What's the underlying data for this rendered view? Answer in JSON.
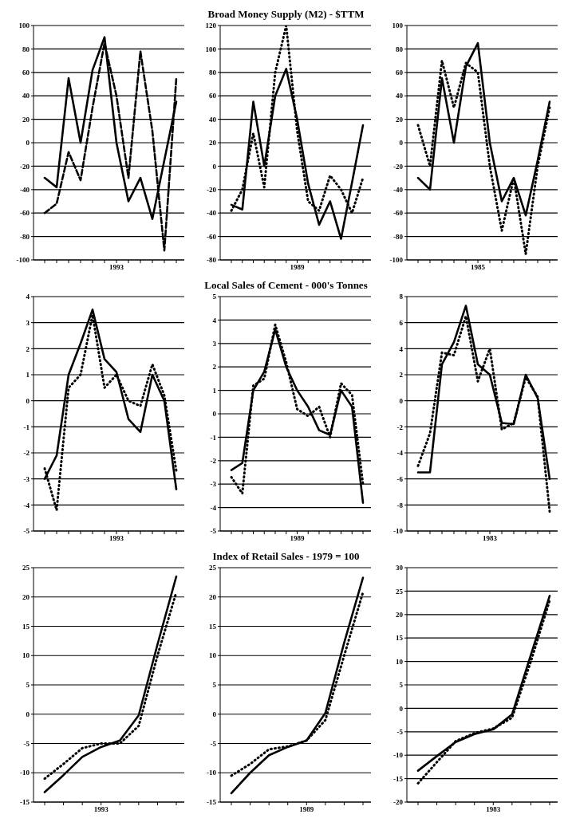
{
  "chart_data": [
    {
      "type": "line",
      "categories": [
        null,
        null,
        null,
        null,
        null,
        null,
        "1993",
        null,
        null,
        null,
        null,
        null
      ],
      "ylim": [
        -100,
        100
      ],
      "yticks": [
        -100,
        -80,
        -60,
        -40,
        -20,
        0,
        20,
        40,
        60,
        80,
        100
      ],
      "grid": "y",
      "series": [
        {
          "color": "#000000",
          "line_style": "solid",
          "values": [
            -30,
            -38,
            55,
            0,
            62,
            90,
            0,
            -50,
            -30,
            -65,
            -15,
            35
          ]
        },
        {
          "color": "#000000",
          "line_style": "dashed",
          "values": [
            -60,
            -52,
            -8,
            -32,
            30,
            85,
            40,
            -30,
            78,
            10,
            -92,
            55
          ]
        }
      ]
    },
    {
      "type": "line",
      "title": "Broad Money Supply (M2) - $TTM",
      "categories": [
        null,
        null,
        null,
        null,
        null,
        null,
        "1989",
        null,
        null,
        null,
        null,
        null,
        null
      ],
      "ylim": [
        -80,
        120
      ],
      "yticks": [
        -80,
        -60,
        -40,
        -20,
        0,
        20,
        40,
        60,
        80,
        100,
        120
      ],
      "grid": "y",
      "series": [
        {
          "color": "#000000",
          "line_style": "solid",
          "values": [
            -33,
            -37,
            55,
            0,
            60,
            83,
            40,
            -15,
            -50,
            -30,
            -62,
            -14,
            35
          ]
        },
        {
          "color": "#000000",
          "line_style": "dotted",
          "values": [
            -38,
            -20,
            28,
            -18,
            80,
            120,
            30,
            -30,
            -38,
            -8,
            -20,
            -40,
            -10
          ]
        }
      ]
    },
    {
      "type": "line",
      "categories": [
        null,
        null,
        null,
        null,
        null,
        "1985",
        null,
        null,
        null,
        null,
        null,
        null
      ],
      "ylim": [
        -100,
        100
      ],
      "yticks": [
        -100,
        -80,
        -60,
        -40,
        -20,
        0,
        20,
        40,
        60,
        80,
        100
      ],
      "grid": "y",
      "series": [
        {
          "color": "#000000",
          "line_style": "solid",
          "values": [
            -30,
            -40,
            55,
            0,
            65,
            85,
            0,
            -50,
            -30,
            -62,
            -15,
            35
          ]
        },
        {
          "color": "#000000",
          "line_style": "dotted",
          "values": [
            15,
            -20,
            70,
            30,
            68,
            60,
            -20,
            -75,
            -30,
            -95,
            -20,
            30
          ]
        }
      ]
    },
    {
      "type": "line",
      "categories": [
        null,
        null,
        null,
        null,
        null,
        null,
        "1993",
        null,
        null,
        null,
        null,
        null
      ],
      "ylim": [
        -5,
        4
      ],
      "yticks": [
        -5,
        -4,
        -3,
        -2,
        -1,
        0,
        1,
        2,
        3,
        4
      ],
      "grid": "y",
      "series": [
        {
          "color": "#000000",
          "line_style": "solid",
          "values": [
            -3,
            -2.1,
            1,
            2.2,
            3.5,
            1.6,
            1.1,
            -0.7,
            -1.2,
            1,
            0,
            -3.4
          ]
        },
        {
          "color": "#000000",
          "line_style": "dotted",
          "values": [
            -2.6,
            -4.2,
            0.5,
            1,
            3.3,
            0.5,
            1,
            0,
            -0.2,
            1.4,
            0.2,
            -2.7
          ]
        }
      ]
    },
    {
      "type": "line",
      "title": "Local Sales of Cement - 000's Tonnes",
      "categories": [
        null,
        null,
        null,
        null,
        null,
        null,
        "1989",
        null,
        null,
        null,
        null,
        null,
        null
      ],
      "ylim": [
        -5,
        5
      ],
      "yticks": [
        -5,
        -4,
        -3,
        -2,
        -1,
        0,
        1,
        2,
        3,
        4,
        5
      ],
      "grid": "y",
      "series": [
        {
          "color": "#000000",
          "line_style": "solid",
          "values": [
            -2.4,
            -2.1,
            1,
            1.8,
            3.6,
            2,
            1,
            0.3,
            -0.7,
            -0.9,
            1,
            0.3,
            -3.8
          ]
        },
        {
          "color": "#000000",
          "line_style": "dotted",
          "values": [
            -2.7,
            -3.4,
            1.2,
            1.5,
            3.8,
            2.2,
            0.2,
            -0.1,
            0.3,
            -1,
            1.3,
            0.8,
            -3
          ]
        }
      ]
    },
    {
      "type": "line",
      "categories": [
        null,
        null,
        null,
        null,
        null,
        null,
        "1983",
        null,
        null,
        null,
        null,
        null
      ],
      "ylim": [
        -10,
        8
      ],
      "yticks": [
        -10,
        -8,
        -6,
        -4,
        -2,
        0,
        2,
        4,
        6,
        8
      ],
      "grid": "y",
      "series": [
        {
          "color": "#000000",
          "line_style": "solid",
          "values": [
            -5.5,
            -5.5,
            2.8,
            4.5,
            7.3,
            2.8,
            2,
            -1.7,
            -1.8,
            2,
            0.2,
            -6
          ]
        },
        {
          "color": "#000000",
          "line_style": "dotted",
          "values": [
            -5,
            -2.5,
            3.7,
            3.5,
            6.5,
            1.5,
            4,
            -2.2,
            -1.7,
            1.8,
            0.3,
            -8.5
          ]
        }
      ]
    },
    {
      "type": "line",
      "categories": [
        null,
        null,
        null,
        "1993",
        null,
        null,
        null,
        null
      ],
      "ylim": [
        -15,
        25
      ],
      "yticks": [
        -15,
        -10,
        -5,
        0,
        5,
        10,
        15,
        20,
        25
      ],
      "grid": "y",
      "series": [
        {
          "color": "#000000",
          "line_style": "solid",
          "values": [
            -13.3,
            -10.4,
            -7.3,
            -5.6,
            -4.5,
            -0.2,
            11.9,
            23.5
          ]
        },
        {
          "color": "#000000",
          "line_style": "dotted",
          "values": [
            -11,
            -8.5,
            -5.8,
            -5,
            -5,
            -2,
            10,
            20.8
          ]
        }
      ]
    },
    {
      "type": "line",
      "title": "Index of Retail Sales - 1979 = 100",
      "categories": [
        null,
        null,
        null,
        null,
        "1989",
        null,
        null,
        null
      ],
      "ylim": [
        -15,
        25
      ],
      "yticks": [
        -15,
        -10,
        -5,
        0,
        5,
        10,
        15,
        20,
        25
      ],
      "grid": "y",
      "series": [
        {
          "color": "#000000",
          "line_style": "solid",
          "values": [
            -13.5,
            -10,
            -7,
            -5.6,
            -4.5,
            0.2,
            12.2,
            23.3
          ]
        },
        {
          "color": "#000000",
          "line_style": "dotted",
          "values": [
            -10.5,
            -8.5,
            -6,
            -5.5,
            -4.5,
            -1,
            10,
            20.8
          ]
        }
      ]
    },
    {
      "type": "line",
      "categories": [
        null,
        null,
        null,
        null,
        "1983",
        null,
        null,
        null
      ],
      "ylim": [
        -20,
        30
      ],
      "yticks": [
        -20,
        -15,
        -10,
        -5,
        0,
        5,
        10,
        15,
        20,
        25,
        30
      ],
      "grid": "y",
      "series": [
        {
          "color": "#000000",
          "line_style": "solid",
          "values": [
            -13.3,
            -10.2,
            -7.2,
            -5.5,
            -4.5,
            -1.3,
            11.4,
            24
          ]
        },
        {
          "color": "#000000",
          "line_style": "dotted",
          "values": [
            -16,
            -11.5,
            -7,
            -5.3,
            -4.3,
            -2,
            10,
            23
          ]
        }
      ]
    }
  ]
}
